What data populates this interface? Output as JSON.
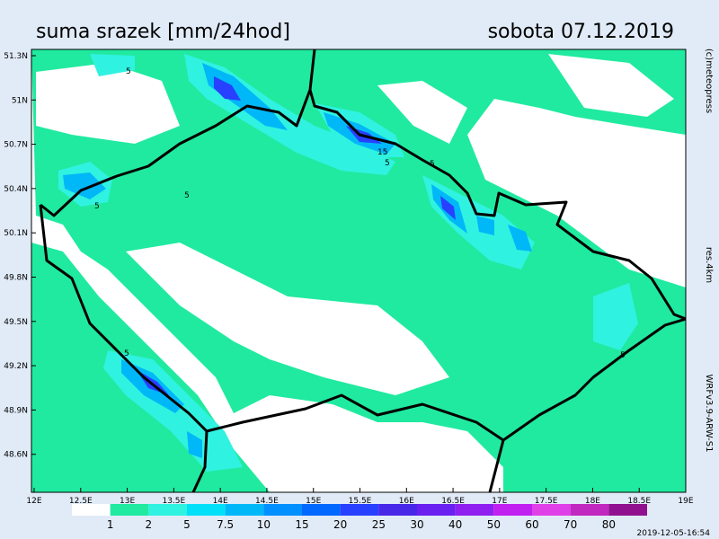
{
  "header": {
    "title": "suma srazek [mm/24hod]",
    "date": "sobota 07.12.2019"
  },
  "side_labels": [
    "(c)meteopress",
    "res.4km",
    "WRFv3.9-ARW-S1"
  ],
  "lat_labels": [
    "51.3N",
    "51N",
    "50.7N",
    "50.4N",
    "50.1N",
    "49.8N",
    "49.5N",
    "49.2N",
    "48.9N",
    "48.6N"
  ],
  "lon_labels": [
    "12E",
    "12.5E",
    "13E",
    "13.5E",
    "14E",
    "14.5E",
    "15E",
    "15.5E",
    "16E",
    "16.5E",
    "17E",
    "17.5E",
    "18E",
    "18.5E",
    "19E"
  ],
  "legend": {
    "labels": [
      "1",
      "2",
      "5",
      "7.5",
      "10",
      "15",
      "20",
      "25",
      "30",
      "40",
      "50",
      "60",
      "70",
      "80"
    ],
    "colors": [
      "#ffffff",
      "#20eaa0",
      "#30f2e0",
      "#00e0f8",
      "#00b8f8",
      "#0090ff",
      "#0068ff",
      "#2840ff",
      "#4828e8",
      "#6a20f0",
      "#9020f0",
      "#c020f0",
      "#e040e8",
      "#c028c0",
      "#901090"
    ]
  },
  "contour_labels": [
    "5",
    "5",
    "5",
    "15",
    "5",
    "5",
    "5",
    "5"
  ],
  "timestamp": "2019-12-05-16:54"
}
